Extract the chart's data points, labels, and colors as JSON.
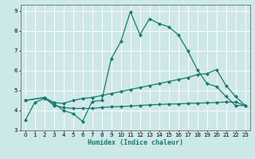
{
  "xlabel": "Humidex (Indice chaleur)",
  "ylabel": "",
  "xlim": [
    -0.5,
    23.5
  ],
  "ylim": [
    3,
    9.3
  ],
  "bg_color": "#cce8e8",
  "grid_color": "#ffffff",
  "line_color": "#1a7a6e",
  "line1_x": [
    0,
    1,
    2,
    3,
    4,
    5,
    6,
    7,
    8,
    9,
    10,
    11,
    12,
    13,
    14,
    15,
    16,
    17,
    18,
    19,
    20,
    21,
    22,
    23
  ],
  "line1_y": [
    3.5,
    4.4,
    4.6,
    4.35,
    4.0,
    3.85,
    3.45,
    4.45,
    4.5,
    6.6,
    7.45,
    8.95,
    7.8,
    8.6,
    8.35,
    8.2,
    7.8,
    7.0,
    6.05,
    5.35,
    5.2,
    4.7,
    4.25,
    4.25
  ],
  "line2_x": [
    0,
    2,
    3,
    4,
    5,
    6,
    7,
    8,
    9,
    10,
    11,
    12,
    13,
    14,
    15,
    16,
    17,
    18,
    19,
    20,
    21,
    22,
    23
  ],
  "line2_y": [
    4.5,
    4.65,
    4.4,
    4.35,
    4.5,
    4.6,
    4.65,
    4.75,
    4.85,
    4.95,
    5.05,
    5.15,
    5.25,
    5.35,
    5.45,
    5.55,
    5.65,
    5.8,
    5.85,
    6.05,
    5.25,
    4.7,
    4.25
  ],
  "line3_x": [
    0,
    2,
    3,
    4,
    5,
    6,
    7,
    8,
    9,
    10,
    11,
    12,
    13,
    14,
    15,
    16,
    17,
    18,
    19,
    20,
    21,
    22,
    23
  ],
  "line3_y": [
    4.5,
    4.65,
    4.25,
    4.15,
    4.1,
    4.1,
    4.1,
    4.15,
    4.18,
    4.2,
    4.22,
    4.25,
    4.28,
    4.3,
    4.32,
    4.33,
    4.35,
    4.37,
    4.38,
    4.4,
    4.42,
    4.42,
    4.25
  ],
  "yticks": [
    3,
    4,
    5,
    6,
    7,
    8,
    9
  ],
  "xticks": [
    0,
    1,
    2,
    3,
    4,
    5,
    6,
    7,
    8,
    9,
    10,
    11,
    12,
    13,
    14,
    15,
    16,
    17,
    18,
    19,
    20,
    21,
    22,
    23
  ],
  "marker": "D",
  "marker_size": 2.0,
  "linewidth": 0.9
}
